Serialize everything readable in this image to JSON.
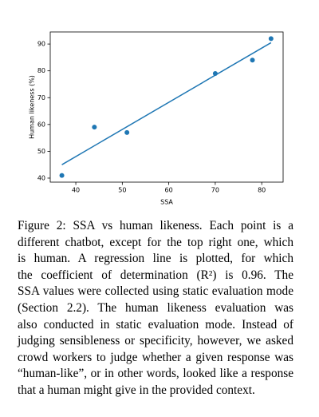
{
  "chart_data": {
    "type": "scatter",
    "x": [
      37,
      44,
      51,
      70,
      78,
      82
    ],
    "values": [
      41,
      59,
      57,
      79,
      84,
      92
    ],
    "color": "#1f77b4",
    "fit": {
      "type": "line",
      "x": [
        37,
        82
      ],
      "values": [
        45,
        90.5
      ],
      "color": "#1f77b4"
    },
    "xlabel": "SSA",
    "ylabel": "Human likeness (%)",
    "xlim": [
      34.5,
      84.6
    ],
    "ylim": [
      38.5,
      94.5
    ],
    "xticks": [
      40,
      50,
      60,
      70,
      80
    ],
    "yticks": [
      40,
      50,
      60,
      70,
      80,
      90
    ]
  },
  "caption": {
    "lines": [
      "Figure 2: SSA vs human likeness.  Each point is a",
      "different chatbot, except for the top right one, which",
      "is human.  A regression line is plotted, for which",
      "the coefficient of determination (R²) is 0.96.  The",
      "SSA values were collected using static evaluation mode",
      "(Section 2.2).  The human likeness evaluation was",
      "also conducted in static evaluation mode.  Instead of",
      "judging sensibleness or specificity, however, we asked",
      "crowd workers to judge whether a given response was",
      "“human-like”, or in other words, looked like a response",
      "that a human might give in the provided context."
    ]
  }
}
